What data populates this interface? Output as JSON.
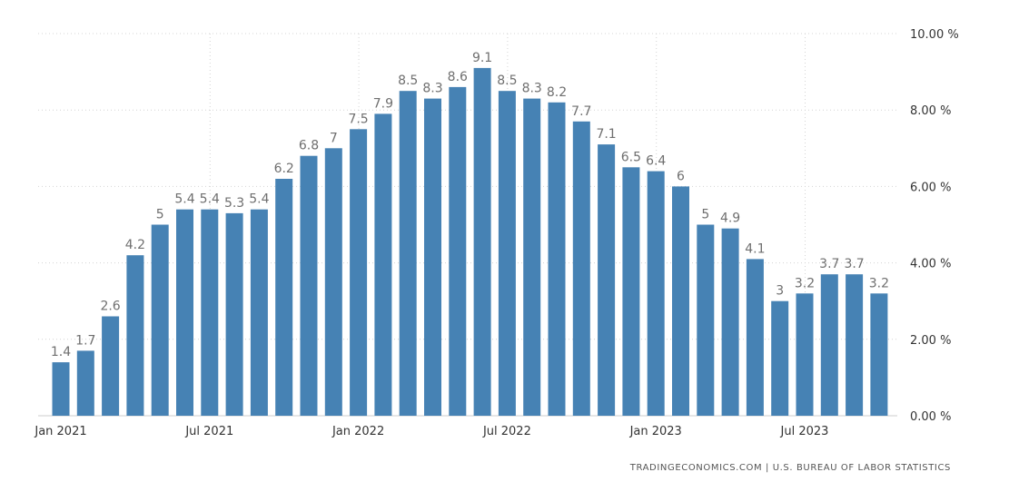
{
  "chart_data": {
    "type": "bar",
    "title": "",
    "xlabel": "",
    "ylabel": "",
    "categories": [
      "Jan 2021",
      "Feb 2021",
      "Mar 2021",
      "Apr 2021",
      "May 2021",
      "Jun 2021",
      "Jul 2021",
      "Aug 2021",
      "Sep 2021",
      "Oct 2021",
      "Nov 2021",
      "Dec 2021",
      "Jan 2022",
      "Feb 2022",
      "Mar 2022",
      "Apr 2022",
      "May 2022",
      "Jun 2022",
      "Jul 2022",
      "Aug 2022",
      "Sep 2022",
      "Oct 2022",
      "Nov 2022",
      "Dec 2022",
      "Jan 2023",
      "Feb 2023",
      "Mar 2023",
      "Apr 2023",
      "May 2023",
      "Jun 2023",
      "Jul 2023",
      "Aug 2023",
      "Sep 2023",
      "Oct 2023"
    ],
    "values": [
      1.4,
      1.7,
      2.6,
      4.2,
      5,
      5.4,
      5.4,
      5.3,
      5.4,
      6.2,
      6.8,
      7,
      7.5,
      7.9,
      8.5,
      8.3,
      8.6,
      9.1,
      8.5,
      8.3,
      8.2,
      7.7,
      7.1,
      6.5,
      6.4,
      6,
      5,
      4.9,
      4.1,
      3,
      3.2,
      3.7,
      3.7,
      3.2
    ],
    "data_labels": [
      "1.4",
      "1.7",
      "2.6",
      "4.2",
      "5",
      "5.4",
      "5.4",
      "5.3",
      "5.4",
      "6.2",
      "6.8",
      "7",
      "7.5",
      "7.9",
      "8.5",
      "8.3",
      "8.6",
      "9.1",
      "8.5",
      "8.3",
      "8.2",
      "7.7",
      "7.1",
      "6.5",
      "6.4",
      "6",
      "5",
      "4.9",
      "4.1",
      "3",
      "3.2",
      "3.7",
      "3.7",
      "3.2"
    ],
    "ylim": [
      0,
      10
    ],
    "y_ticks": [
      0,
      2,
      4,
      6,
      8,
      10
    ],
    "y_tick_labels": [
      "0.00 %",
      "2.00 %",
      "4.00 %",
      "6.00 %",
      "8.00 %",
      "10.00 %"
    ],
    "x_tick_labels": [
      {
        "index": 0,
        "label": "Jan 2021"
      },
      {
        "index": 6,
        "label": "Jul 2021"
      },
      {
        "index": 12,
        "label": "Jan 2022"
      },
      {
        "index": 18,
        "label": "Jul 2022"
      },
      {
        "index": 24,
        "label": "Jan 2023"
      },
      {
        "index": 30,
        "label": "Jul 2023"
      }
    ],
    "grid": true,
    "y_axis_side": "right",
    "bar_color": "#4682b4",
    "source": "TRADINGECONOMICS.COM  |  U.S. BUREAU OF LABOR STATISTICS"
  }
}
